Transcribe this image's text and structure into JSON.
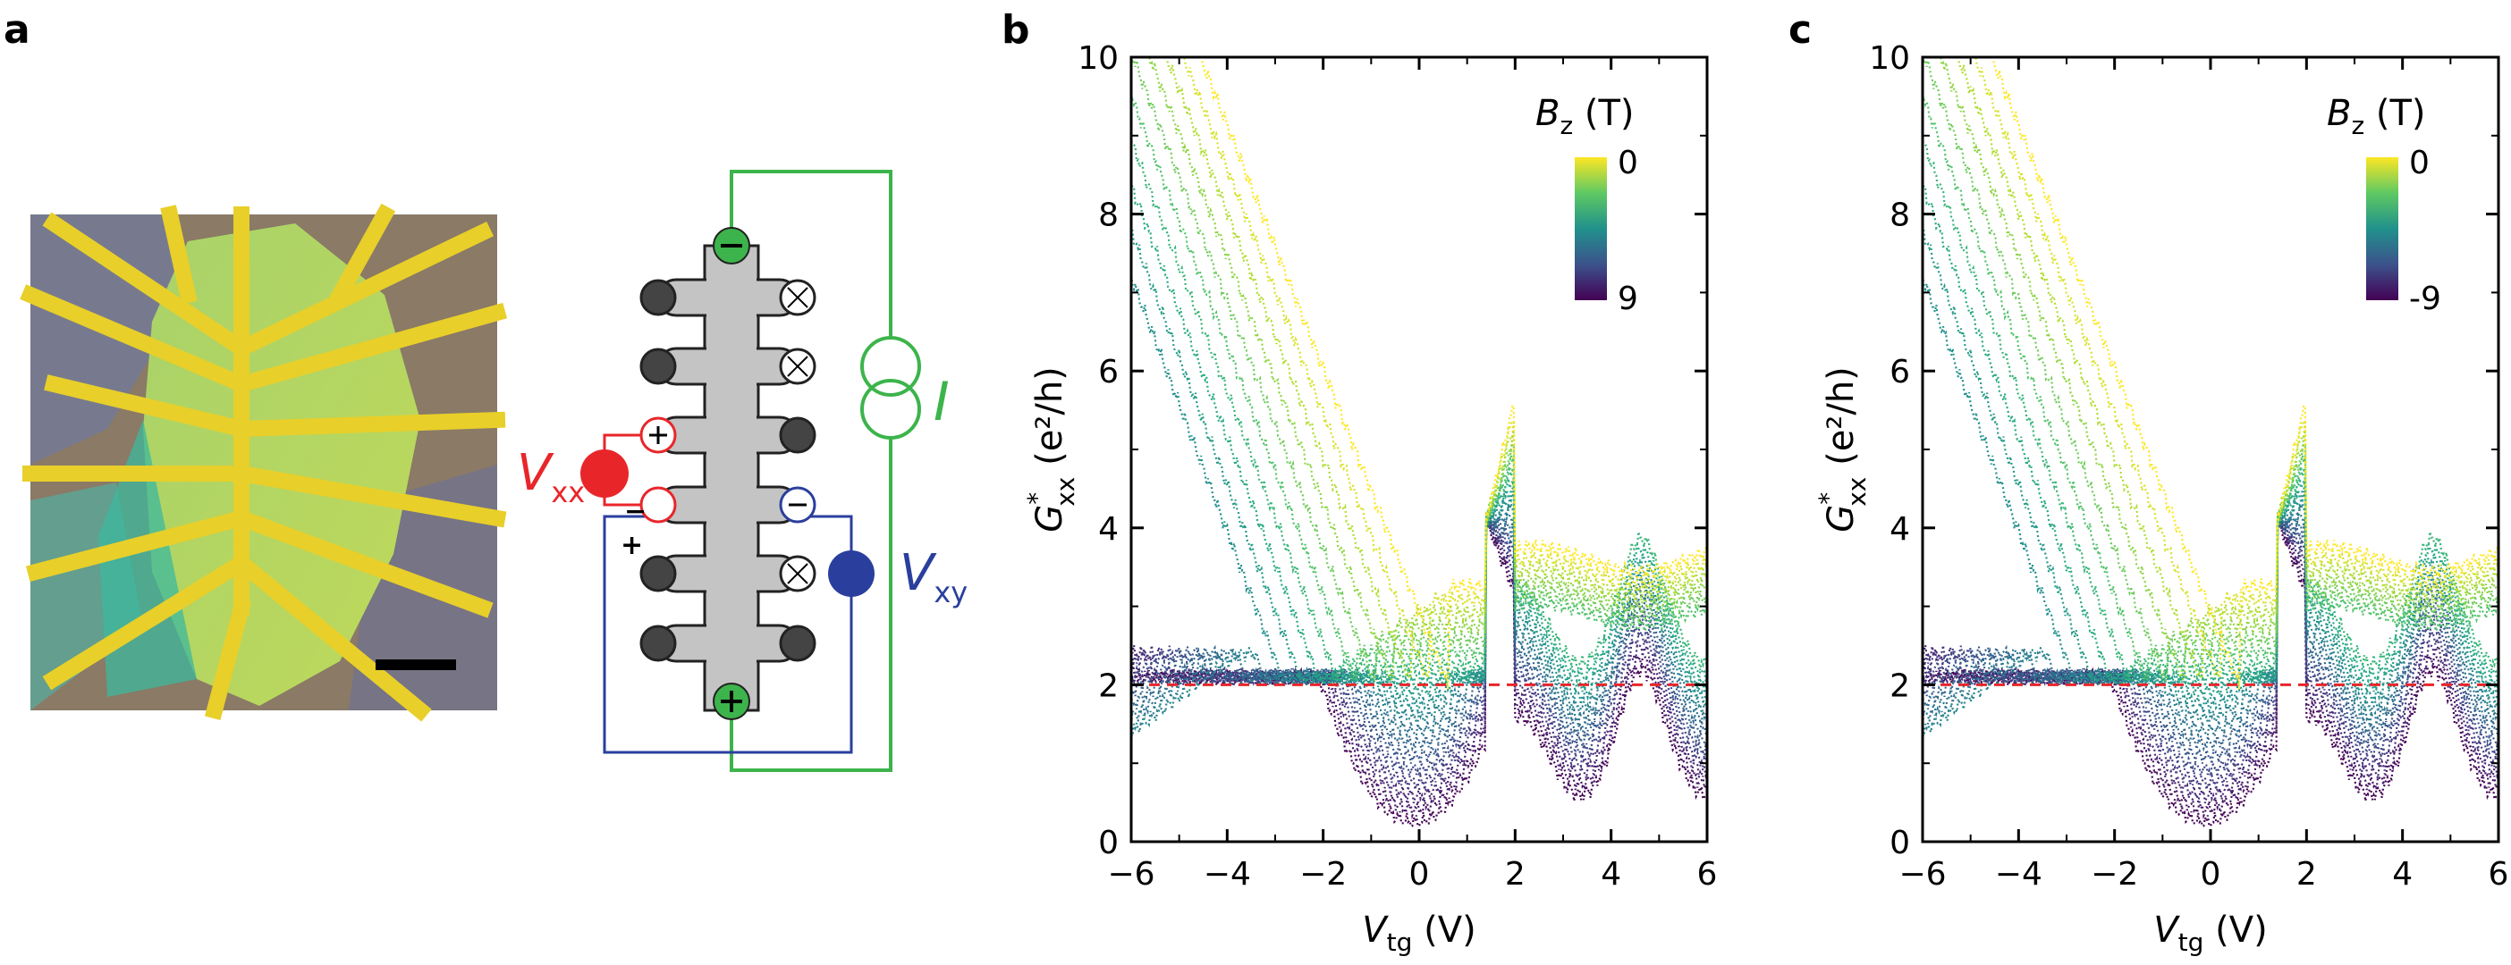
{
  "panels": {
    "a": "a",
    "b": "b",
    "c": "c"
  },
  "diagram": {
    "vxx_label": "V",
    "vxx_sub": "xx",
    "vxy_label": "V",
    "vxy_sub": "xy",
    "current_label": "I",
    "plus": "+",
    "minus": "−",
    "colors": {
      "current": "#3cb44b",
      "vxx": "#e8262a",
      "vxy": "#2a3f9d",
      "hallbar": "#c4c4c4",
      "contact": "#444444"
    }
  },
  "chart_data": [
    {
      "type": "line",
      "panel": "b",
      "title": "",
      "xlabel_main": "V",
      "xlabel_sub": "tg",
      "xlabel_unit": " (V)",
      "ylabel_main": "G",
      "ylabel_sup": "*",
      "ylabel_sub": "xx",
      "ylabel_unit": " (e²/h)",
      "xlim": [
        -6,
        6
      ],
      "ylim": [
        0,
        10
      ],
      "xticks": [
        -6,
        -4,
        -2,
        0,
        2,
        4,
        6
      ],
      "xtick_labels": [
        "−6",
        "−4",
        "−2",
        "0",
        "2",
        "4",
        "6"
      ],
      "yticks": [
        0,
        2,
        4,
        6,
        8,
        10
      ],
      "ytick_labels": [
        "0",
        "2",
        "4",
        "6",
        "8",
        "10"
      ],
      "reference_line": {
        "y": 2,
        "color": "#e8262a",
        "style": "dashed"
      },
      "colorbar": {
        "title_main": "B",
        "title_sub": "z",
        "title_unit": " (T)",
        "top_label": "0",
        "bottom_label": "9",
        "colormap": "viridis"
      },
      "series_count": 19,
      "field_values_T": [
        0,
        0.5,
        1,
        1.5,
        2,
        2.5,
        3,
        3.5,
        4,
        4.5,
        5,
        5.5,
        6,
        6.5,
        7,
        7.5,
        8,
        8.5,
        9
      ]
    },
    {
      "type": "line",
      "panel": "c",
      "title": "",
      "xlabel_main": "V",
      "xlabel_sub": "tg",
      "xlabel_unit": " (V)",
      "ylabel_main": "G",
      "ylabel_sup": "*",
      "ylabel_sub": "xx",
      "ylabel_unit": " (e²/h)",
      "xlim": [
        -6,
        6
      ],
      "ylim": [
        0,
        10
      ],
      "xticks": [
        -6,
        -4,
        -2,
        0,
        2,
        4,
        6
      ],
      "xtick_labels": [
        "−6",
        "−4",
        "−2",
        "0",
        "2",
        "4",
        "6"
      ],
      "yticks": [
        0,
        2,
        4,
        6,
        8,
        10
      ],
      "ytick_labels": [
        "0",
        "2",
        "4",
        "6",
        "8",
        "10"
      ],
      "reference_line": {
        "y": 2,
        "color": "#e8262a",
        "style": "dashed"
      },
      "colorbar": {
        "title_main": "B",
        "title_sub": "z",
        "title_unit": " (T)",
        "top_label": "0",
        "bottom_label": "-9",
        "colormap": "viridis"
      },
      "series_count": 19,
      "field_values_T": [
        0,
        -0.5,
        -1,
        -1.5,
        -2,
        -2.5,
        -3,
        -3.5,
        -4,
        -4.5,
        -5,
        -5.5,
        -6,
        -6.5,
        -7,
        -7.5,
        -8,
        -8.5,
        -9
      ]
    }
  ]
}
